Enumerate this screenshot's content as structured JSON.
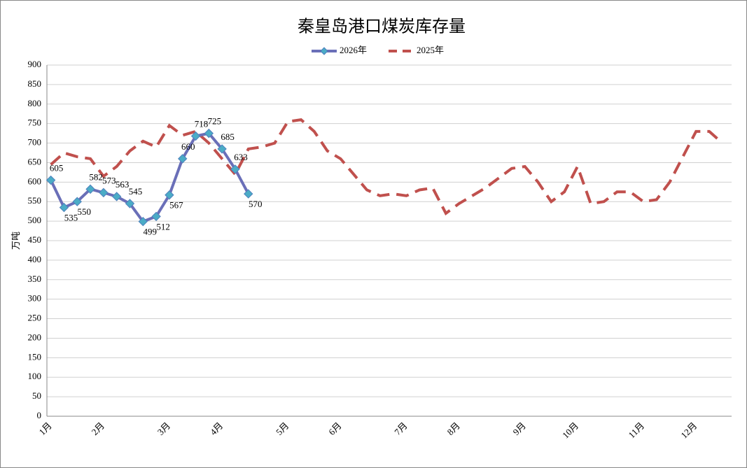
{
  "chart_data": {
    "type": "line",
    "title": "秦皇岛港口煤炭库存量",
    "y_label": "万吨",
    "categories": [
      "1月",
      null,
      null,
      null,
      "2月",
      null,
      null,
      null,
      null,
      "3月",
      null,
      null,
      null,
      "4月",
      null,
      null,
      null,
      null,
      "5月",
      null,
      null,
      null,
      "6月",
      null,
      null,
      null,
      null,
      "7月",
      null,
      null,
      null,
      "8月",
      null,
      null,
      null,
      null,
      "9月",
      null,
      null,
      null,
      "10月",
      null,
      null,
      null,
      null,
      "11月",
      null,
      null,
      null,
      "12月",
      null,
      null
    ],
    "series": [
      {
        "name": "2026年",
        "color": "#6a6fb8",
        "marker_color": "#4bacc6",
        "dashed": false,
        "data_labels": true,
        "values": [
          605,
          535,
          550,
          582,
          573,
          563,
          545,
          499,
          512,
          567,
          660,
          718,
          725,
          685,
          633,
          570,
          null,
          null,
          null,
          null,
          null,
          null,
          null,
          null,
          null,
          null,
          null,
          null,
          null,
          null,
          null,
          null,
          null,
          null,
          null,
          null,
          null,
          null,
          null,
          null,
          null,
          null,
          null,
          null,
          null,
          null,
          null,
          null,
          null,
          null,
          null,
          null
        ]
      },
      {
        "name": "2025年",
        "color": "#c0504d",
        "dashed": true,
        "data_labels": false,
        "values": [
          645,
          675,
          665,
          660,
          615,
          640,
          680,
          705,
          690,
          745,
          720,
          730,
          700,
          660,
          620,
          685,
          690,
          700,
          755,
          760,
          730,
          680,
          660,
          620,
          580,
          565,
          570,
          565,
          580,
          585,
          520,
          545,
          565,
          585,
          610,
          635,
          640,
          600,
          550,
          575,
          640,
          545,
          550,
          575,
          575,
          550,
          555,
          600,
          665,
          730,
          730,
          700
        ]
      }
    ],
    "ylim": [
      0,
      900
    ],
    "yticks": [
      0,
      50,
      100,
      150,
      200,
      250,
      300,
      350,
      400,
      450,
      500,
      550,
      600,
      650,
      700,
      750,
      800,
      850,
      900
    ],
    "grid": true,
    "legend": "top"
  }
}
